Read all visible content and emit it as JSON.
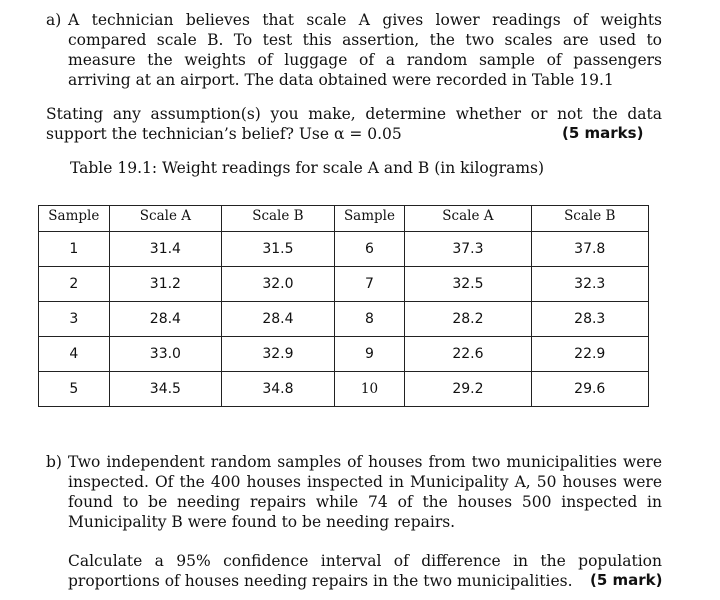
{
  "part_a": {
    "label": "a)",
    "text": "A technician believes that scale A gives lower readings of weights compared scale B. To test this assertion, the two scales are used to measure the weights of luggage of a random sample of passengers arriving at an airport. The data obtained were recorded in Table 19.1",
    "question": "Stating any assumption(s) you make, determine whether or not the data support the technician’s belief? Use α = 0.05",
    "marks": "(5 marks)"
  },
  "table": {
    "caption": "Table 19.1: Weight readings for scale A and B (in kilograms)",
    "headers": [
      "Sample",
      "Scale A",
      "Scale  B",
      "Sample",
      "Scale A",
      "Scale B"
    ],
    "rows": [
      [
        "1",
        "31.4",
        "31.5",
        "6",
        "37.3",
        "37.8"
      ],
      [
        "2",
        "31.2",
        "32.0",
        "7",
        "32.5",
        "32.3"
      ],
      [
        "3",
        "28.4",
        "28.4",
        "8",
        "28.2",
        "28.3"
      ],
      [
        "4",
        "33.0",
        "32.9",
        "9",
        "22.6",
        "22.9"
      ],
      [
        "5",
        "34.5",
        "34.8",
        "10",
        "29.2",
        "29.6"
      ]
    ]
  },
  "part_b": {
    "label": "b)",
    "text": "Two independent random samples of houses from two municipalities were inspected. Of the 400 houses inspected in Municipality A, 50 houses were found to be needing repairs while 74 of the houses 500 inspected in Municipality B were found to be needing repairs.",
    "question": "Calculate a 95% confidence interval of difference in the population proportions of houses needing repairs in the two municipalities.",
    "marks": "(5 mark)"
  }
}
